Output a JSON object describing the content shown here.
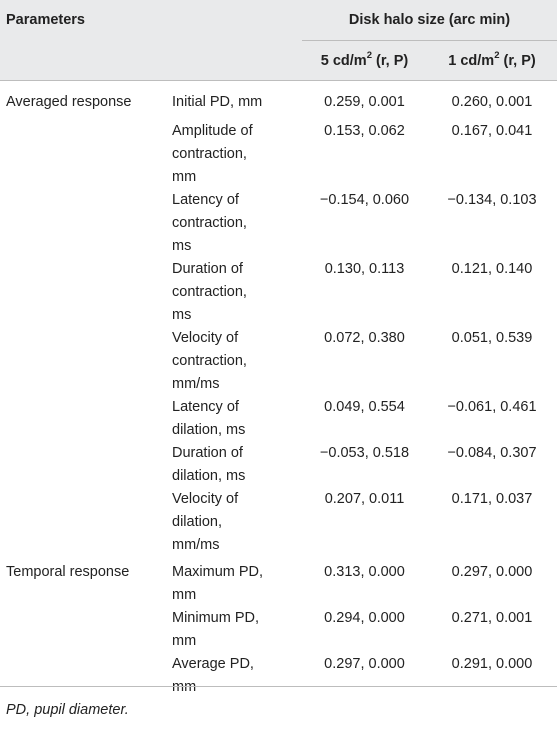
{
  "header": {
    "parameters": "Parameters",
    "group_title": "Disk halo size (arc min)",
    "col1": {
      "prefix": "5 cd/m",
      "sup": "2",
      "suffix": " (r, P)"
    },
    "col2": {
      "prefix": "1 cd/m",
      "sup": "2",
      "suffix": " (r, P)"
    }
  },
  "rows": [
    {
      "group": "Averaged response",
      "param": "Initial PD, mm",
      "v1": "0.259, 0.001",
      "v2": "0.260, 0.001"
    },
    {
      "group": "",
      "param": "Amplitude of\ncontraction,\nmm",
      "v1": "0.153, 0.062",
      "v2": "0.167, 0.041"
    },
    {
      "group": "",
      "param": "Latency of\ncontraction,\nms",
      "v1": "−0.154, 0.060",
      "v2": "−0.134, 0.103"
    },
    {
      "group": "",
      "param": "Duration of\ncontraction,\nms",
      "v1": "0.130, 0.113",
      "v2": "0.121, 0.140"
    },
    {
      "group": "",
      "param": "Velocity of\ncontraction,\nmm/ms",
      "v1": "0.072, 0.380",
      "v2": "0.051, 0.539"
    },
    {
      "group": "",
      "param": "Latency of\ndilation, ms",
      "v1": "0.049, 0.554",
      "v2": "−0.061, 0.461"
    },
    {
      "group": "",
      "param": "Duration of\ndilation, ms",
      "v1": "−0.053, 0.518",
      "v2": "−0.084, 0.307"
    },
    {
      "group": "",
      "param": "Velocity of\ndilation,\nmm/ms",
      "v1": "0.207, 0.011",
      "v2": "0.171, 0.037"
    },
    {
      "group": "Temporal response",
      "param": "Maximum PD,\nmm",
      "v1": "0.313, 0.000",
      "v2": "0.297, 0.000"
    },
    {
      "group": "",
      "param": "Minimum PD,\nmm",
      "v1": "0.294, 0.000",
      "v2": "0.271, 0.001"
    },
    {
      "group": "",
      "param": "Average PD,\nmm",
      "v1": "0.297, 0.000",
      "v2": "0.291, 0.000"
    }
  ],
  "footnote": "PD, pupil diameter."
}
